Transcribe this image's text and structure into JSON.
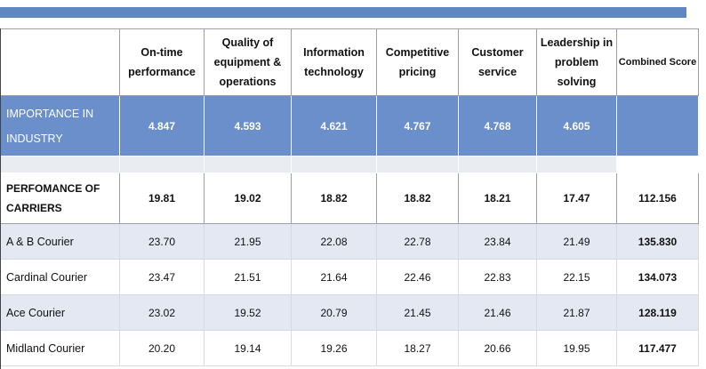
{
  "header": {
    "columns": [
      "On-time performance",
      "Quality of equipment & operations",
      "Information technology",
      "Competitive pricing",
      "Customer service",
      "Leadership in problem solving",
      "Combined Score"
    ]
  },
  "importance": {
    "label": "IMPORTANCE IN INDUSTRY",
    "values": [
      "4.847",
      "4.593",
      "4.621",
      "4.767",
      "4.768",
      "4.605",
      ""
    ]
  },
  "performance": {
    "label": "PERFOMANCE OF CARRIERS",
    "values": [
      "19.81",
      "19.02",
      "18.82",
      "18.82",
      "18.21",
      "17.47",
      "112.156"
    ]
  },
  "carriers": [
    {
      "name": "A & B Courier",
      "values": [
        "23.70",
        "21.95",
        "22.08",
        "22.78",
        "23.84",
        "21.49",
        "135.830"
      ]
    },
    {
      "name": "Cardinal Courier",
      "values": [
        "23.47",
        "21.51",
        "21.64",
        "22.46",
        "22.83",
        "22.15",
        "134.073"
      ]
    },
    {
      "name": "Ace Courier",
      "values": [
        "23.02",
        "19.52",
        "20.79",
        "21.45",
        "21.46",
        "21.87",
        "128.119"
      ]
    },
    {
      "name": "Midland Courier",
      "values": [
        "20.20",
        "19.14",
        "19.26",
        "18.27",
        "20.66",
        "19.95",
        "117.477"
      ]
    }
  ],
  "colors": {
    "accent_blue": "#5f87c2",
    "importance_row": "#6a8fcb",
    "shaded_row": "#e3e8f2"
  }
}
